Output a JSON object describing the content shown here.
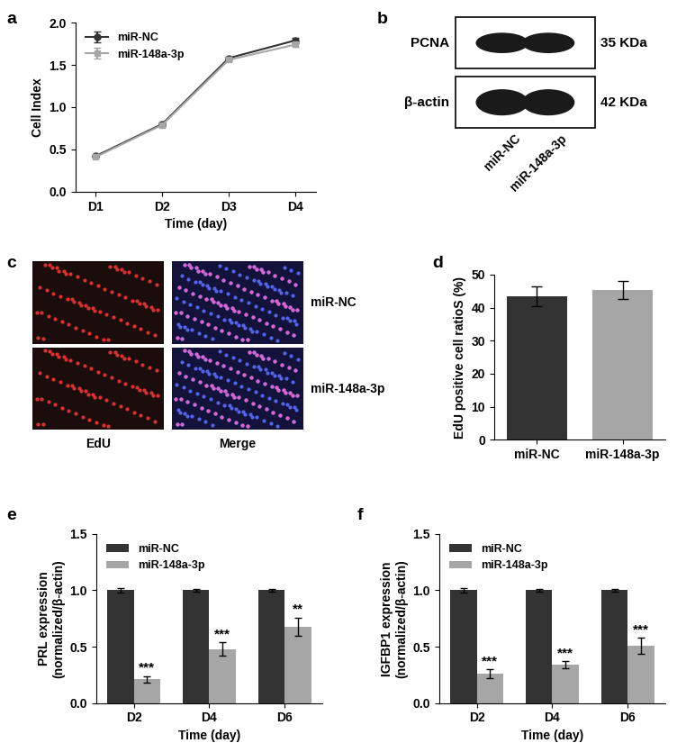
{
  "chart_data": [
    {
      "panel": "a",
      "type": "line",
      "x_label": "Time (day)",
      "y_label": "Cell Index",
      "categories": [
        "D1",
        "D2",
        "D3",
        "D4"
      ],
      "series": [
        {
          "name": "miR-NC",
          "color": "#333333",
          "marker": "circle",
          "values": [
            0.42,
            0.8,
            1.58,
            1.79
          ],
          "errors": [
            0.01,
            0.02,
            0.02,
            0.03
          ]
        },
        {
          "name": "miR-148a-3p",
          "color": "#a6a6a6",
          "marker": "square",
          "values": [
            0.41,
            0.79,
            1.56,
            1.74
          ],
          "errors": [
            0.01,
            0.02,
            0.02,
            0.03
          ]
        }
      ],
      "ylim": [
        0,
        2.0
      ],
      "yticks": [
        {
          "value": 0,
          "label": "0.0"
        },
        {
          "value": 0.5,
          "label": "0.5"
        },
        {
          "value": 1.0,
          "label": "1.0"
        },
        {
          "value": 1.5,
          "label": "1.5"
        },
        {
          "value": 2.0,
          "label": "2.0"
        }
      ],
      "legend": "upper left"
    },
    {
      "panel": "d",
      "type": "bar",
      "y_label": "EdU positive cell ratioS (%)",
      "categories": [
        "miR-NC",
        "miR-148a-3p"
      ],
      "values": [
        43.5,
        45.3
      ],
      "errors": [
        3.0,
        2.8
      ],
      "colors": [
        "#333333",
        "#a6a6a6"
      ],
      "ylim": [
        0,
        50
      ],
      "yticks": [
        0,
        10,
        20,
        30,
        40,
        50
      ]
    },
    {
      "panel": "e",
      "type": "bar",
      "x_label": "Time (day)",
      "y_label": "PRL expression\n(normalized/β-actin)",
      "categories": [
        "D2",
        "D4",
        "D6"
      ],
      "series": [
        {
          "name": "miR-NC",
          "color": "#333333",
          "values": [
            1.0,
            1.0,
            1.0
          ],
          "errors": [
            0.02,
            0.01,
            0.01
          ]
        },
        {
          "name": "miR-148a-3p",
          "color": "#a6a6a6",
          "values": [
            0.21,
            0.48,
            0.68
          ],
          "errors": [
            0.03,
            0.06,
            0.08
          ],
          "annotations": [
            "***",
            "***",
            "**"
          ]
        }
      ],
      "ylim": [
        0,
        1.5
      ],
      "yticks": [
        {
          "value": 0,
          "label": "0.0"
        },
        {
          "value": 0.5,
          "label": "0.5"
        },
        {
          "value": 1.0,
          "label": "1.0"
        },
        {
          "value": 1.5,
          "label": "1.5"
        }
      ],
      "legend": "upper left"
    },
    {
      "panel": "f",
      "type": "bar",
      "x_label": "Time (day)",
      "y_label": "IGFBP1 expression\n(normalized/β-actin)",
      "categories": [
        "D2",
        "D4",
        "D6"
      ],
      "series": [
        {
          "name": "miR-NC",
          "color": "#333333",
          "values": [
            1.0,
            1.0,
            1.0
          ],
          "errors": [
            0.02,
            0.01,
            0.01
          ]
        },
        {
          "name": "miR-148a-3p",
          "color": "#a6a6a6",
          "values": [
            0.26,
            0.34,
            0.51
          ],
          "errors": [
            0.04,
            0.03,
            0.07
          ],
          "annotations": [
            "***",
            "***",
            "***"
          ]
        }
      ],
      "ylim": [
        0,
        1.5
      ],
      "yticks": [
        {
          "value": 0,
          "label": "0.0"
        },
        {
          "value": 0.5,
          "label": "0.5"
        },
        {
          "value": 1.0,
          "label": "1.0"
        },
        {
          "value": 1.5,
          "label": "1.5"
        }
      ],
      "legend": "upper left"
    }
  ],
  "blot": {
    "panel": "b",
    "rows": [
      {
        "label": "PCNA",
        "size": "35 KDa"
      },
      {
        "label": "β-actin",
        "size": "42 KDa"
      }
    ],
    "lanes": [
      "miR-NC",
      "miR-148a-3p"
    ]
  },
  "micrograph": {
    "panel": "c",
    "columns": [
      "EdU",
      "Merge"
    ],
    "rows": [
      "miR-NC",
      "miR-148a-3p"
    ]
  }
}
